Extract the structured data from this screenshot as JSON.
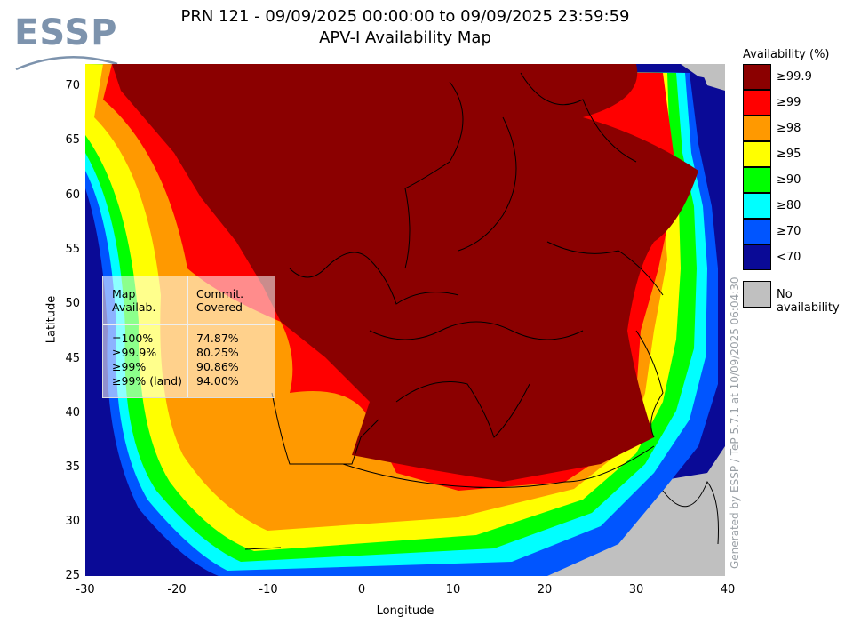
{
  "logo": {
    "text": "ESSP"
  },
  "title": {
    "line1": "PRN 121 - 09/09/2025 00:00:00 to 09/09/2025 23:59:59",
    "line2": "APV-I Availability Map"
  },
  "axes": {
    "xlabel": "Longitude",
    "ylabel": "Latitude",
    "xticks": [
      "-30",
      "-20",
      "-10",
      "0",
      "10",
      "20",
      "30",
      "40"
    ],
    "yticks": [
      "70",
      "65",
      "60",
      "55",
      "50",
      "45",
      "40",
      "35",
      "30",
      "25"
    ],
    "xlim": [
      -30,
      40
    ],
    "ylim": [
      25,
      72
    ]
  },
  "legend": {
    "title": "Availability (%)",
    "items": [
      {
        "label": "≥99.9",
        "color": "#8b0000"
      },
      {
        "label": "≥99",
        "color": "#ff0000"
      },
      {
        "label": "≥98",
        "color": "#ff9900"
      },
      {
        "label": "≥95",
        "color": "#ffff00"
      },
      {
        "label": "≥90",
        "color": "#00ff00"
      },
      {
        "label": "≥80",
        "color": "#00ffff"
      },
      {
        "label": "≥70",
        "color": "#0055ff"
      },
      {
        "label": "<70",
        "color": "#0a0a96"
      }
    ],
    "no_availability": {
      "label": "No availability",
      "color": "#c0c0c0"
    }
  },
  "stats": {
    "col1_header": [
      "Map",
      "Availab."
    ],
    "col2_header": [
      "Commit.",
      "Covered"
    ],
    "rows": [
      {
        "level": "=100%",
        "covered": "74.87%"
      },
      {
        "level": "≥99.9%",
        "covered": "80.25%"
      },
      {
        "level": "≥99%",
        "covered": "90.86%"
      },
      {
        "level": "≥99% (land)",
        "covered": "94.00%"
      }
    ]
  },
  "generated_note": "Generated by ESSP / TeP 5.7.1 at 10/09/2025 06:04:30"
}
